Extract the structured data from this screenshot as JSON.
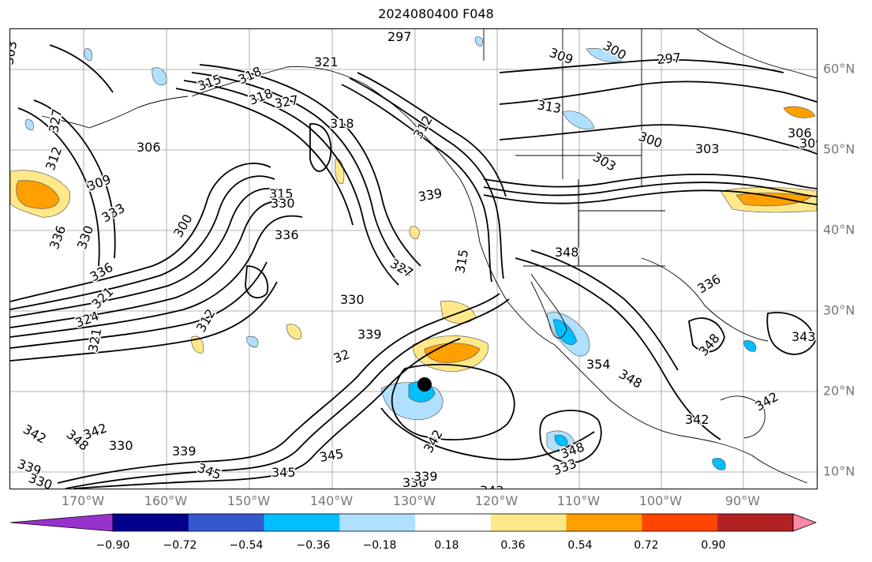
{
  "title": "2024080400 F048",
  "lat_labels": [
    "60°N",
    "50°N",
    "40°N",
    "30°N",
    "20°N",
    "10°N"
  ],
  "lon_labels": [
    "170°W",
    "160°W",
    "150°W",
    "140°W",
    "130°W",
    "120°W",
    "110°W",
    "100°W",
    "90°W"
  ],
  "colorbar": {
    "colors": [
      "#9932cc",
      "#00008b",
      "#3558cf",
      "#00bfff",
      "#b0e0ff",
      "#ffffff",
      "#ffe88a",
      "#ff9f00",
      "#ff4500",
      "#b22222",
      "#ff88aa"
    ],
    "tick_labels": [
      "−0.90",
      "−0.72",
      "−0.54",
      "−0.36",
      "−0.18",
      "0.18",
      "0.36",
      "0.54",
      "0.72",
      "0.90"
    ]
  },
  "contour_labels": [
    "297",
    "321",
    "327",
    "309",
    "300",
    "297",
    "303",
    "315",
    "318",
    "318",
    "318",
    "313",
    "312",
    "303",
    "300",
    "303",
    "306",
    "309",
    "312",
    "327",
    "309",
    "306",
    "315",
    "333",
    "330",
    "300",
    "330",
    "336",
    "336",
    "327",
    "339",
    "315",
    "321",
    "324",
    "312",
    "330",
    "339",
    "321",
    "32",
    "348",
    "342",
    "339",
    "348",
    "336",
    "336",
    "330",
    "342",
    "330",
    "339",
    "345",
    "345",
    "342",
    "345",
    "348",
    "333",
    "336",
    "339",
    "342",
    "354",
    "348",
    "342",
    "348",
    "342",
    "343"
  ]
}
